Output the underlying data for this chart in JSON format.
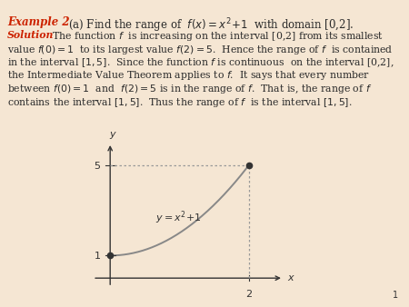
{
  "background_color": "#f5e6d3",
  "example_label_color": "#cc2200",
  "solution_label_color": "#cc2200",
  "body_text_color": "#2a2a2a",
  "curve_color": "#888888",
  "dot_color": "#333333",
  "dashed_color": "#999999",
  "axis_color": "#333333",
  "label_color": "#333333",
  "graph_xlim": [
    -0.35,
    2.6
  ],
  "graph_ylim": [
    -0.6,
    6.2
  ],
  "page_number": "1"
}
